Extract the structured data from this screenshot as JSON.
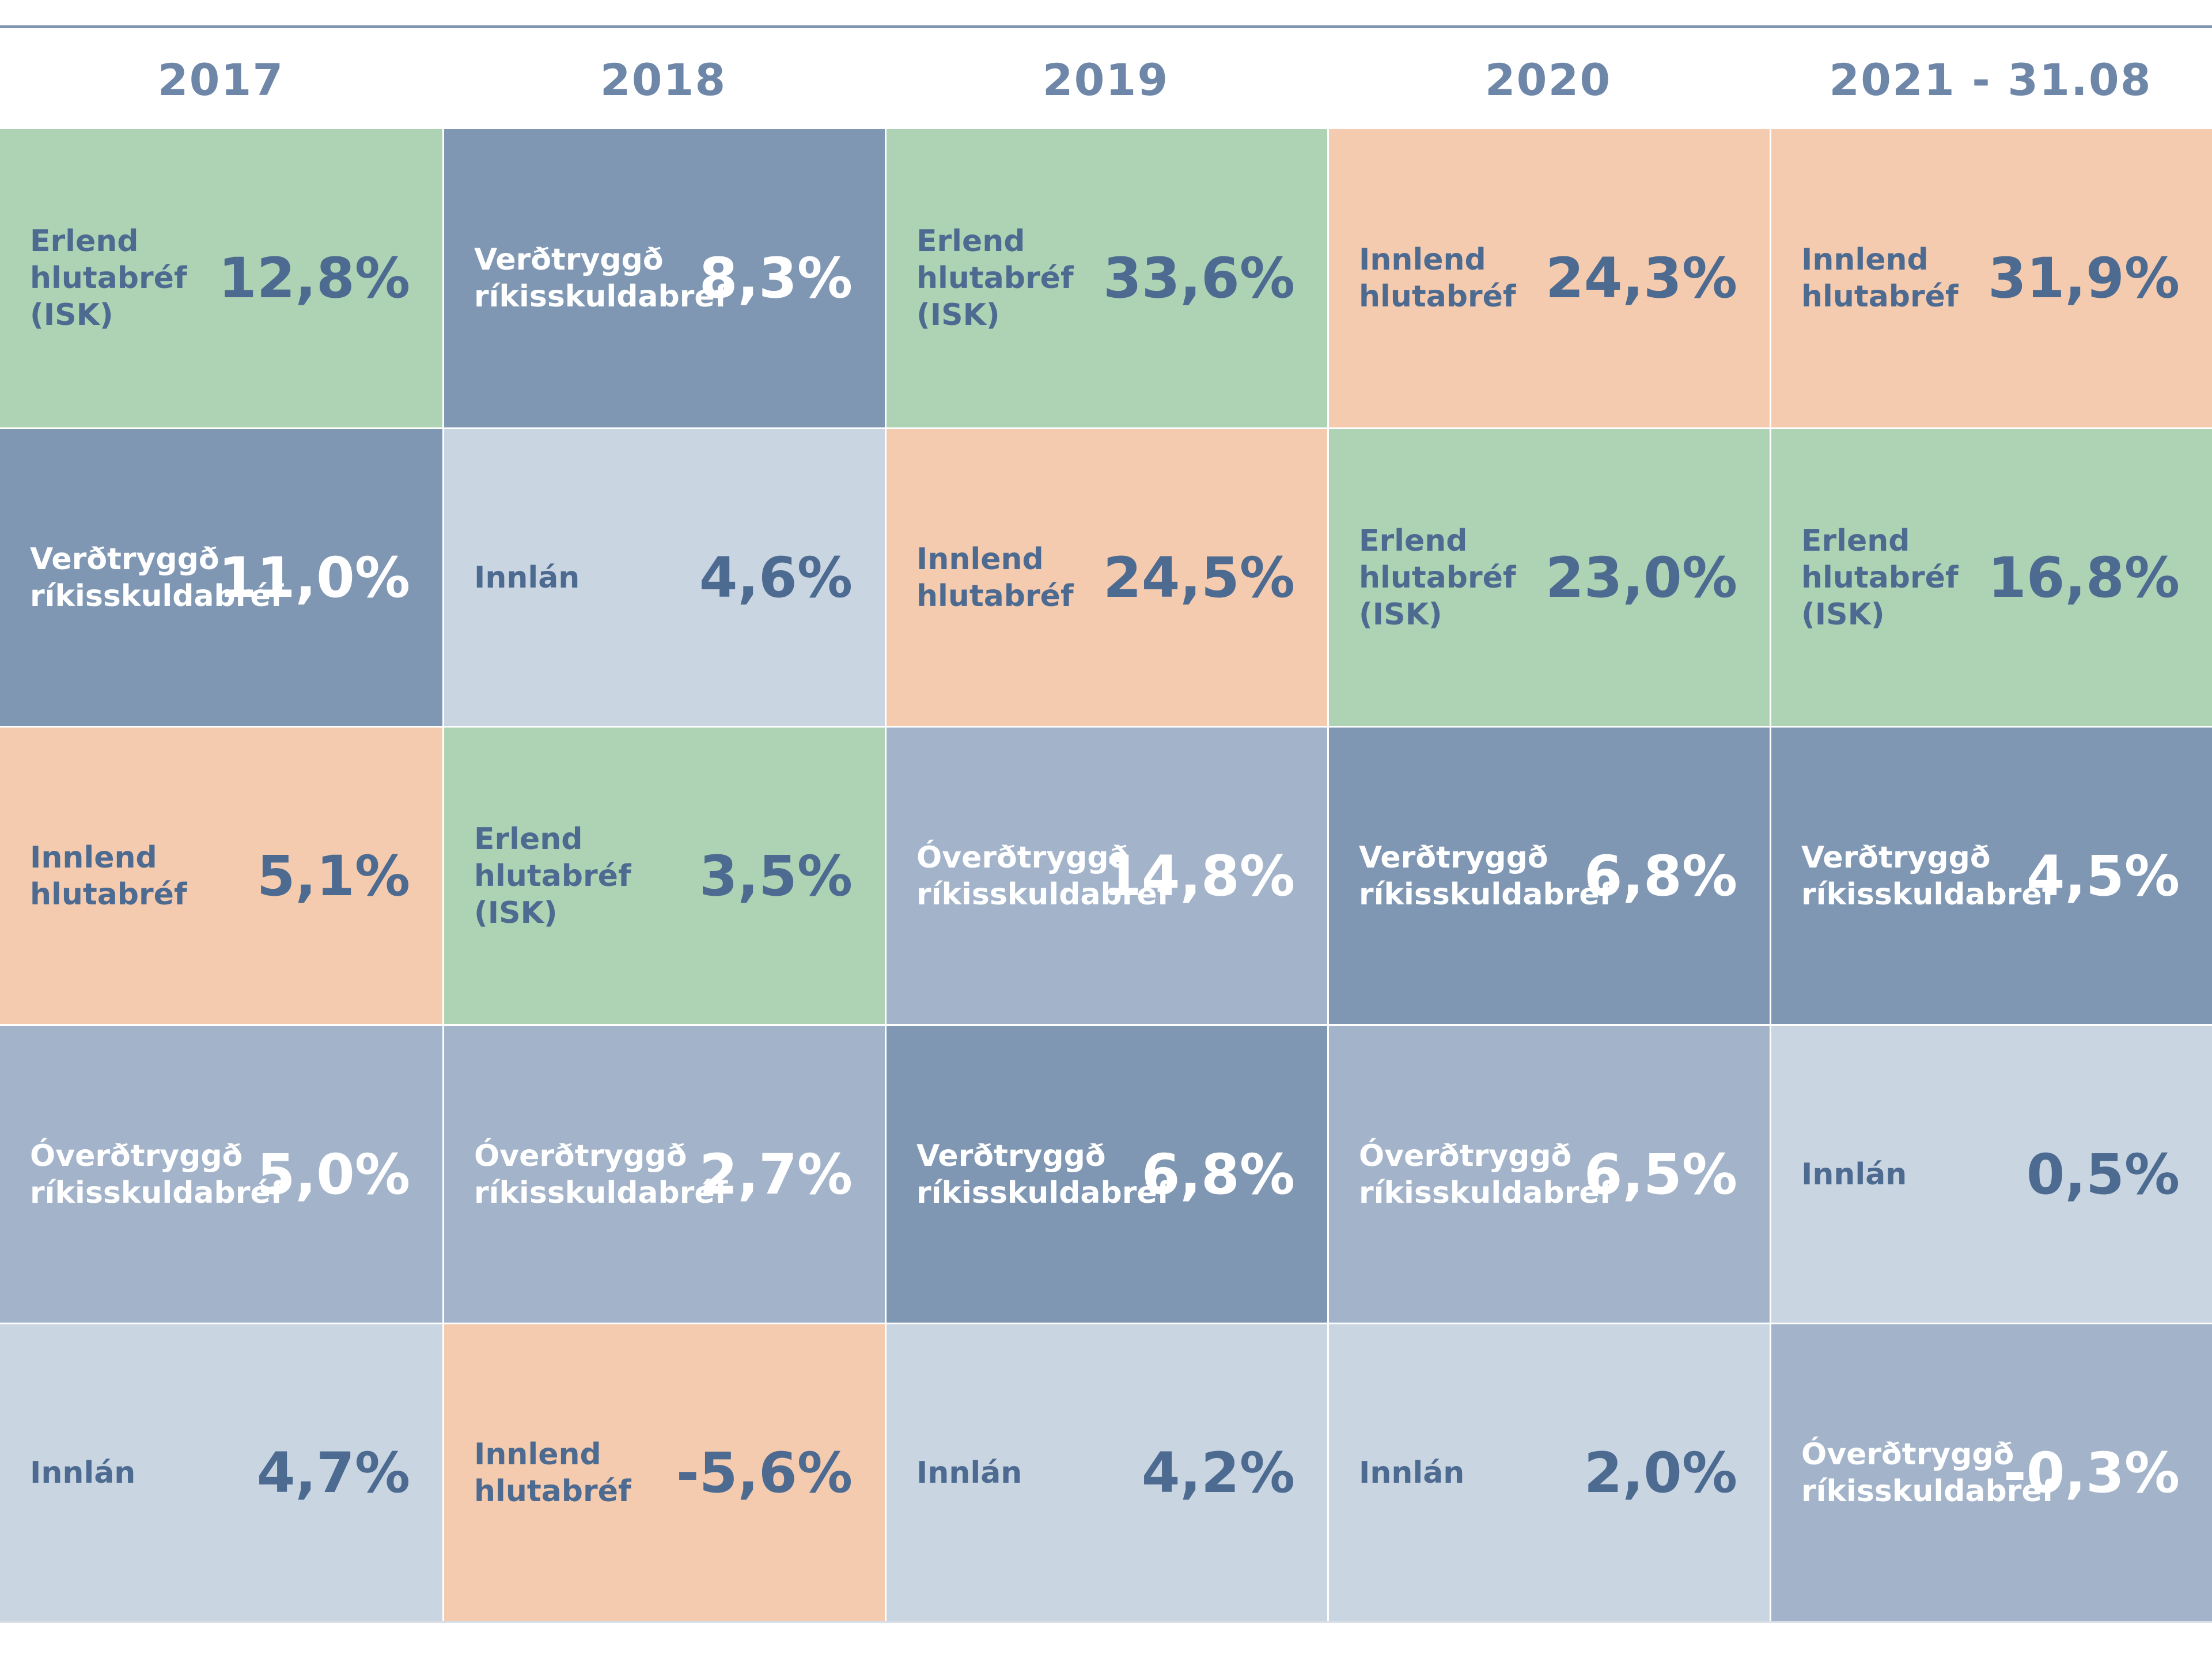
{
  "colors": {
    "Erlend hlutabréf (ISK)": "#aed2b4",
    "Innlend hlutabréf": "#f4cbae",
    "Verðtryggð ríkisskuldabréf": "#7f97b3",
    "Óverðtryggð ríkisskuldabréf": "#a3b4ca",
    "Innlán": "#c9d5e1"
  },
  "text_colors": {
    "on_dark": "#ffffff",
    "on_light": "#4d6a91"
  },
  "chart_data": {
    "type": "table",
    "columns": [
      "2017",
      "2018",
      "2019",
      "2020",
      "2021 - 31.08"
    ],
    "cells": [
      [
        {
          "label": "Erlend\nhlutabréf (ISK)",
          "asset": "Erlend hlutabréf (ISK)",
          "value": "12,8%"
        },
        {
          "label": "Verðtryggð\nríkisskuldabréf",
          "asset": "Verðtryggð ríkisskuldabréf",
          "value": "11,0%"
        },
        {
          "label": "Innlend\nhlutabréf",
          "asset": "Innlend hlutabréf",
          "value": "5,1%"
        },
        {
          "label": "Óverðtryggð\nríkisskuldabréf",
          "asset": "Óverðtryggð ríkisskuldabréf",
          "value": "5,0%"
        },
        {
          "label": "Innlán",
          "asset": "Innlán",
          "value": "4,7%"
        }
      ],
      [
        {
          "label": "Verðtryggð\nríkisskuldabréf",
          "asset": "Verðtryggð ríkisskuldabréf",
          "value": "8,3%"
        },
        {
          "label": "Innlán",
          "asset": "Innlán",
          "value": "4,6%"
        },
        {
          "label": "Erlend\nhlutabréf (ISK)",
          "asset": "Erlend hlutabréf (ISK)",
          "value": "3,5%"
        },
        {
          "label": "Óverðtryggð\nríkisskuldabréf",
          "asset": "Óverðtryggð ríkisskuldabréf",
          "value": "2,7%"
        },
        {
          "label": "Innlend\nhlutabréf",
          "asset": "Innlend hlutabréf",
          "value": "-5,6%"
        }
      ],
      [
        {
          "label": "Erlend\nhlutabréf (ISK)",
          "asset": "Erlend hlutabréf (ISK)",
          "value": "33,6%"
        },
        {
          "label": "Innlend\nhlutabréf",
          "asset": "Innlend hlutabréf",
          "value": "24,5%"
        },
        {
          "label": "Óverðtryggð\nríkisskuldabréf",
          "asset": "Óverðtryggð ríkisskuldabréf",
          "value": "14,8%"
        },
        {
          "label": "Verðtryggð\nríkisskuldabréf",
          "asset": "Verðtryggð ríkisskuldabréf",
          "value": "6,8%"
        },
        {
          "label": "Innlán",
          "asset": "Innlán",
          "value": "4,2%"
        }
      ],
      [
        {
          "label": "Innlend\nhlutabréf",
          "asset": "Innlend hlutabréf",
          "value": "24,3%"
        },
        {
          "label": "Erlend\nhlutabréf (ISK)",
          "asset": "Erlend hlutabréf (ISK)",
          "value": "23,0%"
        },
        {
          "label": "Verðtryggð\nríkisskuldabréf",
          "asset": "Verðtryggð ríkisskuldabréf",
          "value": "6,8%"
        },
        {
          "label": "Óverðtryggð\nríkisskuldabréf",
          "asset": "Óverðtryggð ríkisskuldabréf",
          "value": "6,5%"
        },
        {
          "label": "Innlán",
          "asset": "Innlán",
          "value": "2,0%"
        }
      ],
      [
        {
          "label": "Innlend\nhlutabréf",
          "asset": "Innlend hlutabréf",
          "value": "31,9%"
        },
        {
          "label": "Erlend\nhlutabréf (ISK)",
          "asset": "Erlend hlutabréf (ISK)",
          "value": "16,8%"
        },
        {
          "label": "Verðtryggð\nríkisskuldabréf",
          "asset": "Verðtryggð ríkisskuldabréf",
          "value": "4,5%"
        },
        {
          "label": "Innlán",
          "asset": "Innlán",
          "value": "0,5%"
        },
        {
          "label": "Óverðtryggð\nríkisskuldabréf",
          "asset": "Óverðtryggð ríkisskuldabréf",
          "value": "-0,3%"
        }
      ]
    ]
  }
}
